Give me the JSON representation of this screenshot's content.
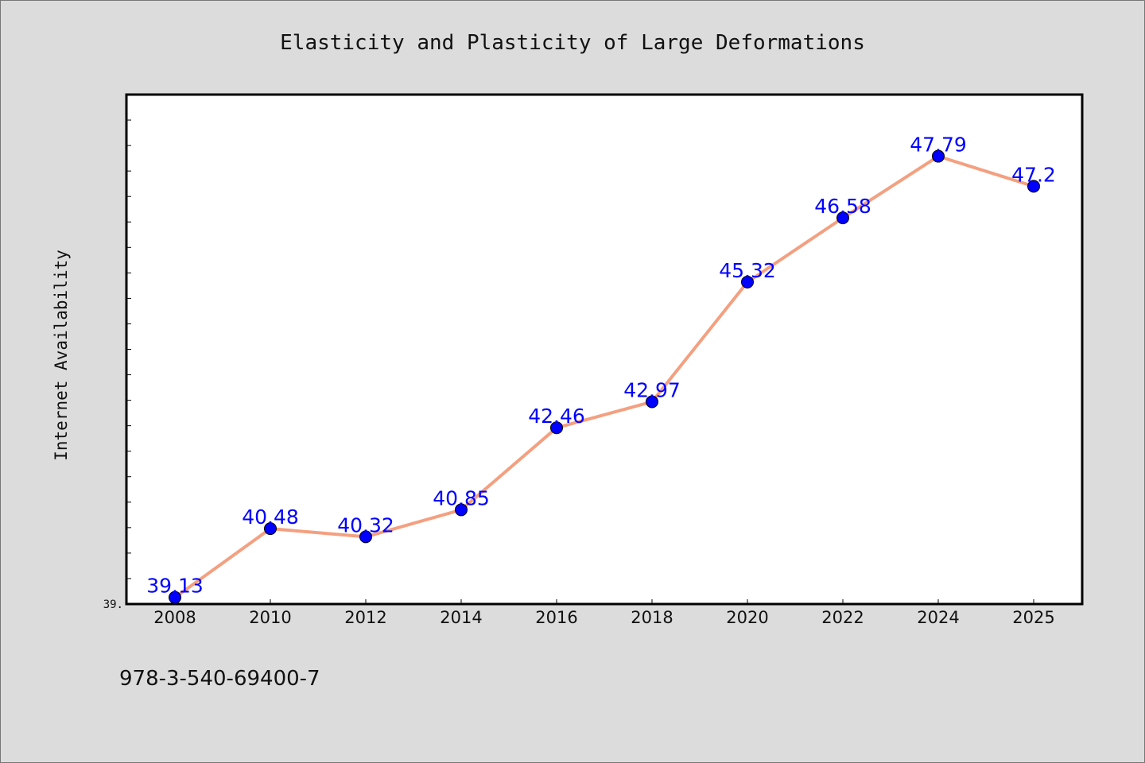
{
  "chart_data": {
    "type": "line",
    "title": "Elasticity and Plasticity of Large Deformations",
    "xlabel": "",
    "ylabel": "Internet Availability",
    "x": [
      "2008",
      "2010",
      "2012",
      "2014",
      "2016",
      "2018",
      "2020",
      "2022",
      "2024",
      "2025"
    ],
    "values": [
      39.13,
      40.48,
      40.32,
      40.85,
      42.46,
      42.97,
      45.32,
      46.58,
      47.79,
      47.2
    ],
    "data_labels": [
      "39.13",
      "40.48",
      "40.32",
      "40.85",
      "42.46",
      "42.97",
      "45.32",
      "46.58",
      "47.79",
      "47.2"
    ],
    "ylim": [
      39.0,
      49.0
    ],
    "y_tick_label": "39.",
    "grid": false,
    "legend": "none",
    "line_color": "#f4a080",
    "marker_color": "#0000ff",
    "label_color": "#0000ff",
    "background_color": "#dcdcdc",
    "plot_background_color": "#ffffff"
  },
  "footer": {
    "isbn": "978-3-540-69400-7"
  }
}
